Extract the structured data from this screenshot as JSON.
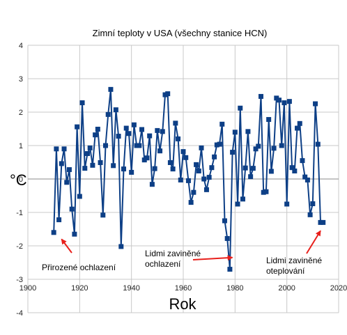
{
  "chart_data": {
    "type": "line",
    "title": "Zimní teploty v USA (všechny stanice HCN)",
    "xlabel": "Rok",
    "ylabel": "°C",
    "xlim": [
      1900,
      2020
    ],
    "ylim": [
      -4,
      4
    ],
    "x_ticks": [
      "1900",
      "1920",
      "1940",
      "1960",
      "1980",
      "2000",
      "2020"
    ],
    "y_ticks": [
      "-4",
      "-3",
      "-2",
      "-1",
      "0",
      "1",
      "2",
      "3",
      "4"
    ],
    "grid": true,
    "legend": "none",
    "series_color": "#0d3f86",
    "x": [
      1910,
      1911,
      1912,
      1913,
      1914,
      1915,
      1916,
      1917,
      1918,
      1919,
      1920,
      1921,
      1922,
      1923,
      1924,
      1925,
      1926,
      1927,
      1928,
      1929,
      1930,
      1931,
      1932,
      1933,
      1934,
      1935,
      1936,
      1937,
      1938,
      1939,
      1940,
      1941,
      1942,
      1943,
      1944,
      1945,
      1946,
      1947,
      1948,
      1949,
      1950,
      1951,
      1952,
      1953,
      1954,
      1955,
      1956,
      1957,
      1958,
      1959,
      1960,
      1961,
      1962,
      1963,
      1964,
      1965,
      1966,
      1967,
      1968,
      1969,
      1970,
      1971,
      1972,
      1973,
      1974,
      1975,
      1976,
      1977,
      1978,
      1979,
      1980,
      1981,
      1982,
      1983,
      1984,
      1985,
      1986,
      1987,
      1988,
      1989,
      1990,
      1991,
      1992,
      1993,
      1994,
      1995,
      1996,
      1997,
      1998,
      1999,
      2000,
      2001,
      2002,
      2003,
      2004,
      2005,
      2006,
      2007,
      2008,
      2009,
      2010,
      2011,
      2012,
      2013,
      2014
    ],
    "values": [
      -1.6,
      0.9,
      -1.22,
      0.46,
      0.9,
      -0.1,
      0.28,
      -0.9,
      -1.65,
      1.56,
      -0.52,
      2.28,
      0.32,
      0.76,
      0.93,
      0.41,
      1.32,
      1.49,
      0.49,
      -1.08,
      1.0,
      1.93,
      2.68,
      0.4,
      2.07,
      1.28,
      -2.02,
      0.3,
      1.52,
      1.36,
      0.2,
      1.62,
      1.0,
      1.0,
      1.48,
      0.57,
      0.63,
      1.29,
      -0.16,
      0.31,
      1.45,
      0.84,
      1.42,
      2.52,
      2.55,
      0.49,
      0.3,
      1.67,
      1.2,
      -0.03,
      0.82,
      0.64,
      -0.05,
      -0.7,
      -0.4,
      0.43,
      0.24,
      0.93,
      0.0,
      -0.32,
      0.05,
      0.34,
      0.66,
      1.02,
      1.04,
      1.64,
      -1.25,
      -1.78,
      -2.7,
      0.8,
      1.4,
      -0.75,
      2.12,
      -0.6,
      0.33,
      1.42,
      0.07,
      0.32,
      0.9,
      0.98,
      2.47,
      -0.4,
      -0.38,
      1.78,
      0.23,
      0.92,
      2.42,
      2.36,
      1.0,
      2.28,
      -0.75,
      2.32,
      0.34,
      0.24,
      1.52,
      1.66,
      0.55,
      0.06,
      -0.03,
      -1.07,
      -0.74,
      2.25,
      1.04,
      -1.3,
      -1.3
    ],
    "annotations": [
      {
        "text": "Přirozené ochlazení",
        "target": [
          1913,
          -1.8
        ]
      },
      {
        "text_lines": [
          "Lidmi zaviněné",
          "ochlazení"
        ],
        "target": [
          1979,
          -2.35
        ]
      },
      {
        "text_lines": [
          "Lidmi zaviněné",
          "oteplování"
        ],
        "target": [
          2013,
          -1.55
        ]
      }
    ]
  }
}
